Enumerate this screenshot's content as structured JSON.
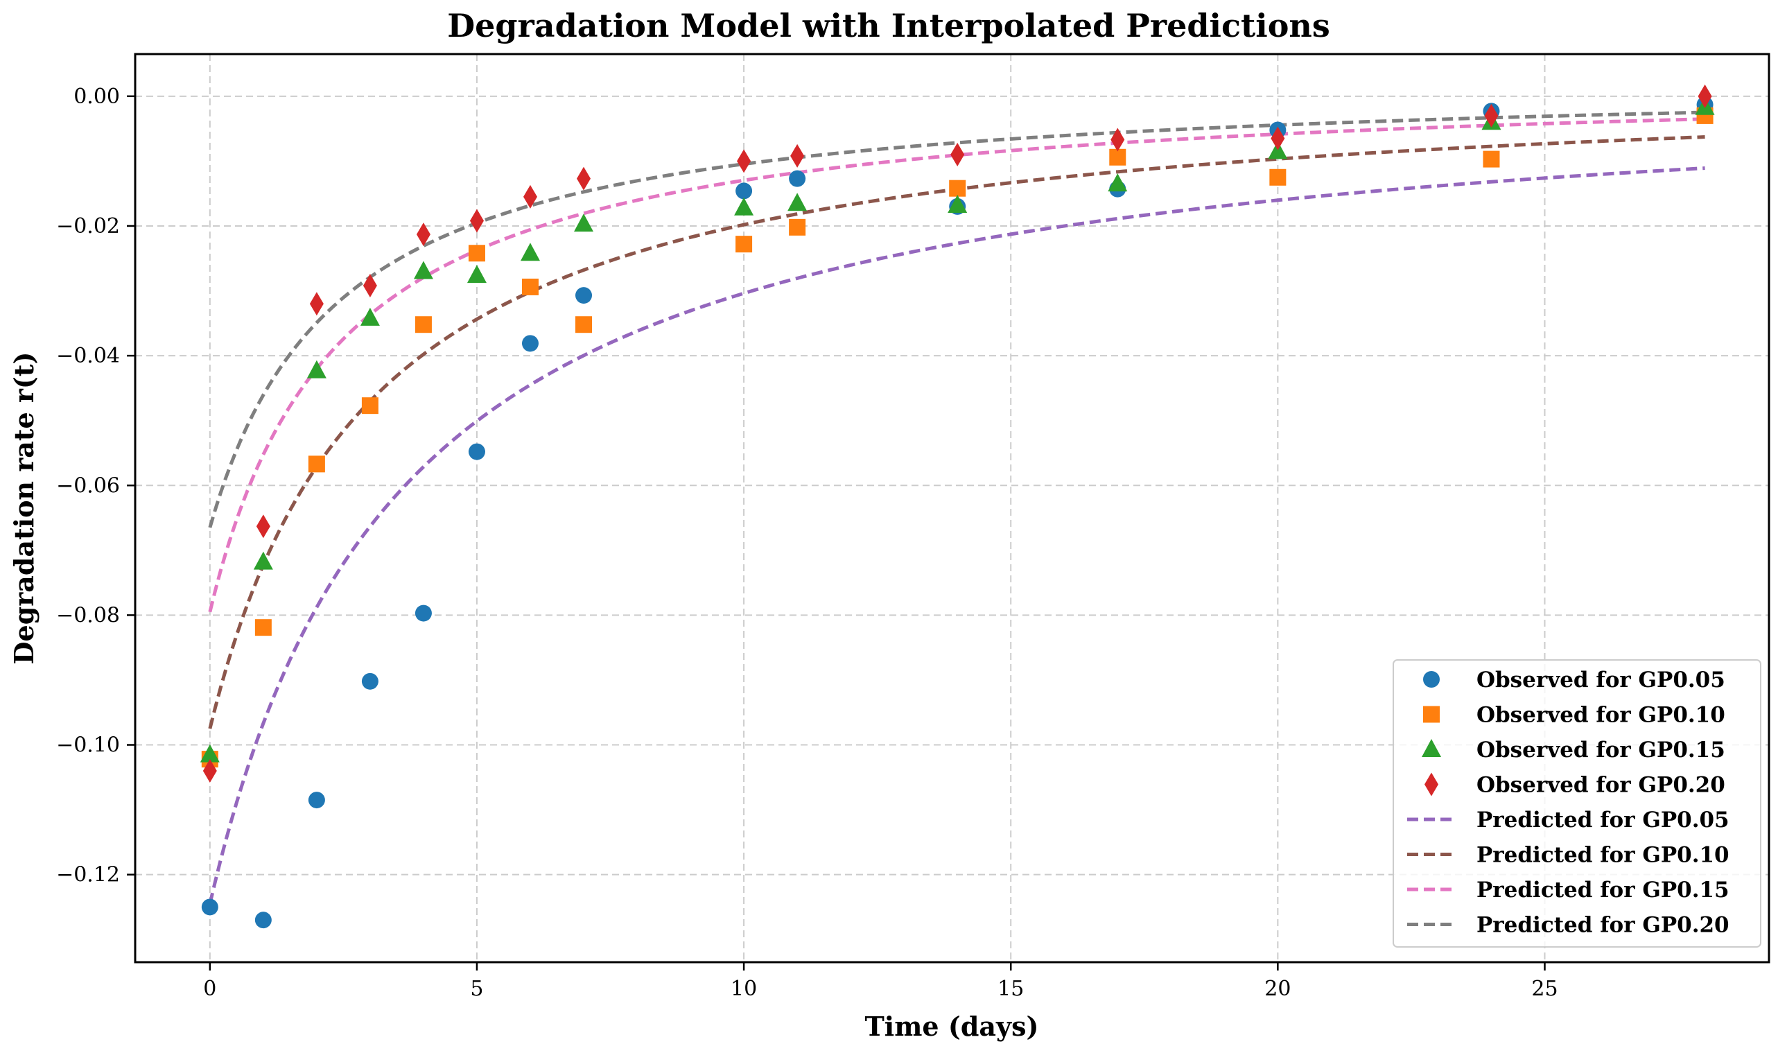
{
  "chart_data": {
    "type": "scatter",
    "title": "Degradation Model with Interpolated Predictions",
    "xlabel": "Time (days)",
    "ylabel": "Degradation rate r(t)",
    "xlim": [
      -1.4,
      29.2
    ],
    "ylim": [
      -0.1335,
      0.0065
    ],
    "xticks": [
      0,
      5,
      10,
      15,
      20,
      25
    ],
    "yticks": [
      0.0,
      -0.02,
      -0.04,
      -0.06,
      -0.08,
      -0.1,
      -0.12
    ],
    "ytick_labels": [
      "0.00",
      "−0.02",
      "−0.04",
      "−0.06",
      "−0.08",
      "−0.10",
      "−0.12"
    ],
    "grid": true,
    "legend_position": "lower-right",
    "x": [
      0,
      1,
      2,
      3,
      4,
      5,
      6,
      7,
      10,
      11,
      14,
      17,
      20,
      24,
      28
    ],
    "observed": [
      {
        "name": "Observed for GP0.05",
        "marker": "circle",
        "color": "#1f77b4",
        "values": [
          -0.125,
          -0.127,
          -0.1085,
          -0.0902,
          -0.0797,
          -0.0548,
          -0.0381,
          -0.0307,
          -0.0146,
          -0.0127,
          -0.017,
          -0.0143,
          -0.0052,
          -0.0023,
          -0.0013
        ]
      },
      {
        "name": "Observed for GP0.10",
        "marker": "square",
        "color": "#ff7f0e",
        "values": [
          -0.1022,
          -0.0819,
          -0.0567,
          -0.0477,
          -0.0352,
          -0.0242,
          -0.0294,
          -0.0352,
          -0.0228,
          -0.0202,
          -0.0142,
          -0.0094,
          -0.0125,
          -0.0097,
          -0.003
        ]
      },
      {
        "name": "Observed for GP0.15",
        "marker": "triangle",
        "color": "#2ca02c",
        "values": [
          -0.1015,
          -0.0718,
          -0.0423,
          -0.0342,
          -0.027,
          -0.0276,
          -0.0242,
          -0.0197,
          -0.0172,
          -0.0165,
          -0.0168,
          -0.0135,
          -0.0085,
          -0.004,
          -0.0017
        ]
      },
      {
        "name": "Observed for GP0.20",
        "marker": "diamond",
        "color": "#d62728",
        "values": [
          -0.104,
          -0.0663,
          -0.032,
          -0.0292,
          -0.0213,
          -0.0192,
          -0.0155,
          -0.0127,
          -0.01,
          -0.0092,
          -0.009,
          -0.0067,
          -0.0065,
          -0.003,
          0.0
        ]
      }
    ],
    "predicted": [
      {
        "name": "Predicted for GP0.05",
        "color": "#9467bd",
        "a": -0.12,
        "b": -4.8e-05,
        "c": 0.0725
      },
      {
        "name": "Predicted for GP0.10",
        "color": "#8c564b",
        "a": -0.089,
        "b": 0.00124,
        "c": 0.1075
      },
      {
        "name": "Predicted for GP0.15",
        "color": "#e377c2",
        "a": -0.0735,
        "b": 0.00394,
        "c": 0.2025
      },
      {
        "name": "Predicted for GP0.20",
        "color": "#7f7f7f",
        "a": -0.0618,
        "b": 0.00463,
        "c": 0.2545
      }
    ]
  }
}
